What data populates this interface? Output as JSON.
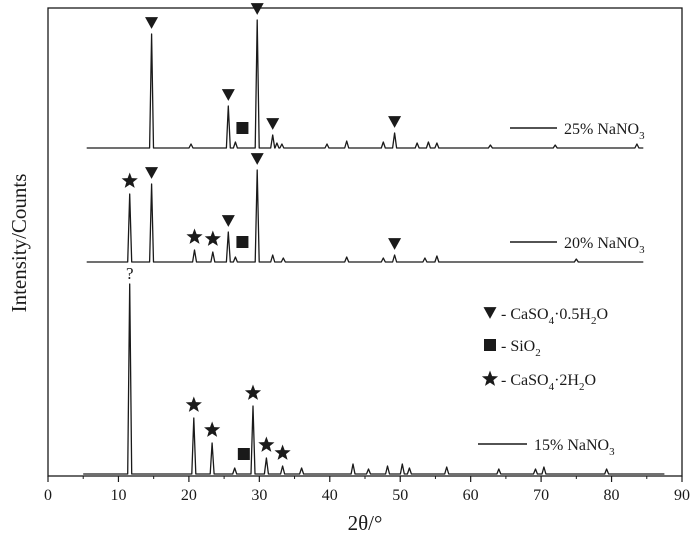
{
  "chart_data": {
    "type": "line",
    "xlabel": "2θ/°",
    "ylabel": "Intensity/Counts",
    "xlim": [
      0,
      90
    ],
    "xticks": [
      0,
      10,
      20,
      30,
      40,
      50,
      60,
      70,
      80,
      90
    ],
    "y_ticks_shown": false,
    "series": [
      {
        "name": "25% NaNO3",
        "label_main": "25% NaNO",
        "label_sub": "3",
        "peaks": [
          {
            "x": 14.7,
            "y": 114
          },
          {
            "x": 20.3,
            "y": 4
          },
          {
            "x": 25.6,
            "y": 42
          },
          {
            "x": 26.6,
            "y": 6
          },
          {
            "x": 29.7,
            "y": 128
          },
          {
            "x": 31.9,
            "y": 13
          },
          {
            "x": 32.5,
            "y": 5
          },
          {
            "x": 33.2,
            "y": 4
          },
          {
            "x": 39.6,
            "y": 4
          },
          {
            "x": 42.4,
            "y": 7
          },
          {
            "x": 47.6,
            "y": 6
          },
          {
            "x": 49.2,
            "y": 15
          },
          {
            "x": 52.4,
            "y": 5
          },
          {
            "x": 54.0,
            "y": 6
          },
          {
            "x": 55.2,
            "y": 5
          },
          {
            "x": 62.8,
            "y": 3
          },
          {
            "x": 72.0,
            "y": 3
          },
          {
            "x": 83.6,
            "y": 4
          }
        ]
      },
      {
        "name": "20% NaNO3",
        "label_main": "20% NaNO",
        "label_sub": "3",
        "peaks": [
          {
            "x": 11.6,
            "y": 68
          },
          {
            "x": 14.7,
            "y": 78
          },
          {
            "x": 20.8,
            "y": 12
          },
          {
            "x": 23.4,
            "y": 10
          },
          {
            "x": 25.6,
            "y": 30
          },
          {
            "x": 26.6,
            "y": 5
          },
          {
            "x": 29.7,
            "y": 92
          },
          {
            "x": 31.9,
            "y": 7
          },
          {
            "x": 33.4,
            "y": 4
          },
          {
            "x": 42.4,
            "y": 5
          },
          {
            "x": 47.6,
            "y": 4
          },
          {
            "x": 49.2,
            "y": 7
          },
          {
            "x": 53.5,
            "y": 4
          },
          {
            "x": 55.2,
            "y": 6
          },
          {
            "x": 75.0,
            "y": 3
          }
        ]
      },
      {
        "name": "15% NaNO3",
        "label_main": "15% NaNO",
        "label_sub": "3",
        "peaks": [
          {
            "x": 11.6,
            "y": 190
          },
          {
            "x": 20.7,
            "y": 56
          },
          {
            "x": 23.3,
            "y": 31
          },
          {
            "x": 26.5,
            "y": 6
          },
          {
            "x": 29.1,
            "y": 68
          },
          {
            "x": 31.0,
            "y": 16
          },
          {
            "x": 33.3,
            "y": 8
          },
          {
            "x": 36.0,
            "y": 6
          },
          {
            "x": 43.3,
            "y": 10
          },
          {
            "x": 45.5,
            "y": 5
          },
          {
            "x": 48.2,
            "y": 8
          },
          {
            "x": 50.3,
            "y": 10
          },
          {
            "x": 51.3,
            "y": 6
          },
          {
            "x": 56.6,
            "y": 7
          },
          {
            "x": 64.0,
            "y": 5
          },
          {
            "x": 69.2,
            "y": 5
          },
          {
            "x": 70.4,
            "y": 7
          },
          {
            "x": 79.3,
            "y": 5
          }
        ]
      }
    ],
    "phase_markers": {
      "25% NaNO3": [
        {
          "x": 14.7,
          "phase": "triangle"
        },
        {
          "x": 25.6,
          "phase": "triangle"
        },
        {
          "x": 29.7,
          "phase": "triangle"
        },
        {
          "x": 31.9,
          "phase": "triangle"
        },
        {
          "x": 49.2,
          "phase": "triangle"
        },
        {
          "x": 27.6,
          "phase": "square"
        }
      ],
      "20% NaNO3": [
        {
          "x": 11.6,
          "phase": "star"
        },
        {
          "x": 14.7,
          "phase": "triangle"
        },
        {
          "x": 20.8,
          "phase": "star"
        },
        {
          "x": 23.4,
          "phase": "star"
        },
        {
          "x": 25.6,
          "phase": "triangle"
        },
        {
          "x": 29.7,
          "phase": "triangle"
        },
        {
          "x": 49.2,
          "phase": "triangle"
        },
        {
          "x": 27.6,
          "phase": "square"
        }
      ],
      "15% NaNO3": [
        {
          "x": 11.6,
          "phase": "unknown",
          "label": "?"
        },
        {
          "x": 20.7,
          "phase": "star"
        },
        {
          "x": 23.3,
          "phase": "star"
        },
        {
          "x": 29.1,
          "phase": "star"
        },
        {
          "x": 31.0,
          "phase": "star"
        },
        {
          "x": 33.3,
          "phase": "star"
        },
        {
          "x": 27.8,
          "phase": "square"
        }
      ]
    },
    "legend": {
      "placement": "middle-right",
      "items": [
        {
          "symbol": "triangle",
          "prefix": "- CaSO",
          "s1": "4",
          "mid": "·0.5H",
          "s2": "2",
          "suffix": "O"
        },
        {
          "symbol": "square",
          "prefix": "- SiO",
          "s1": "2",
          "mid": "",
          "s2": "",
          "suffix": ""
        },
        {
          "symbol": "star",
          "prefix": "- CaSO",
          "s1": "4",
          "mid": "·2H",
          "s2": "2",
          "suffix": "O"
        }
      ]
    },
    "colors": {
      "line": "#1a1a1a",
      "background": "#ffffff"
    }
  }
}
